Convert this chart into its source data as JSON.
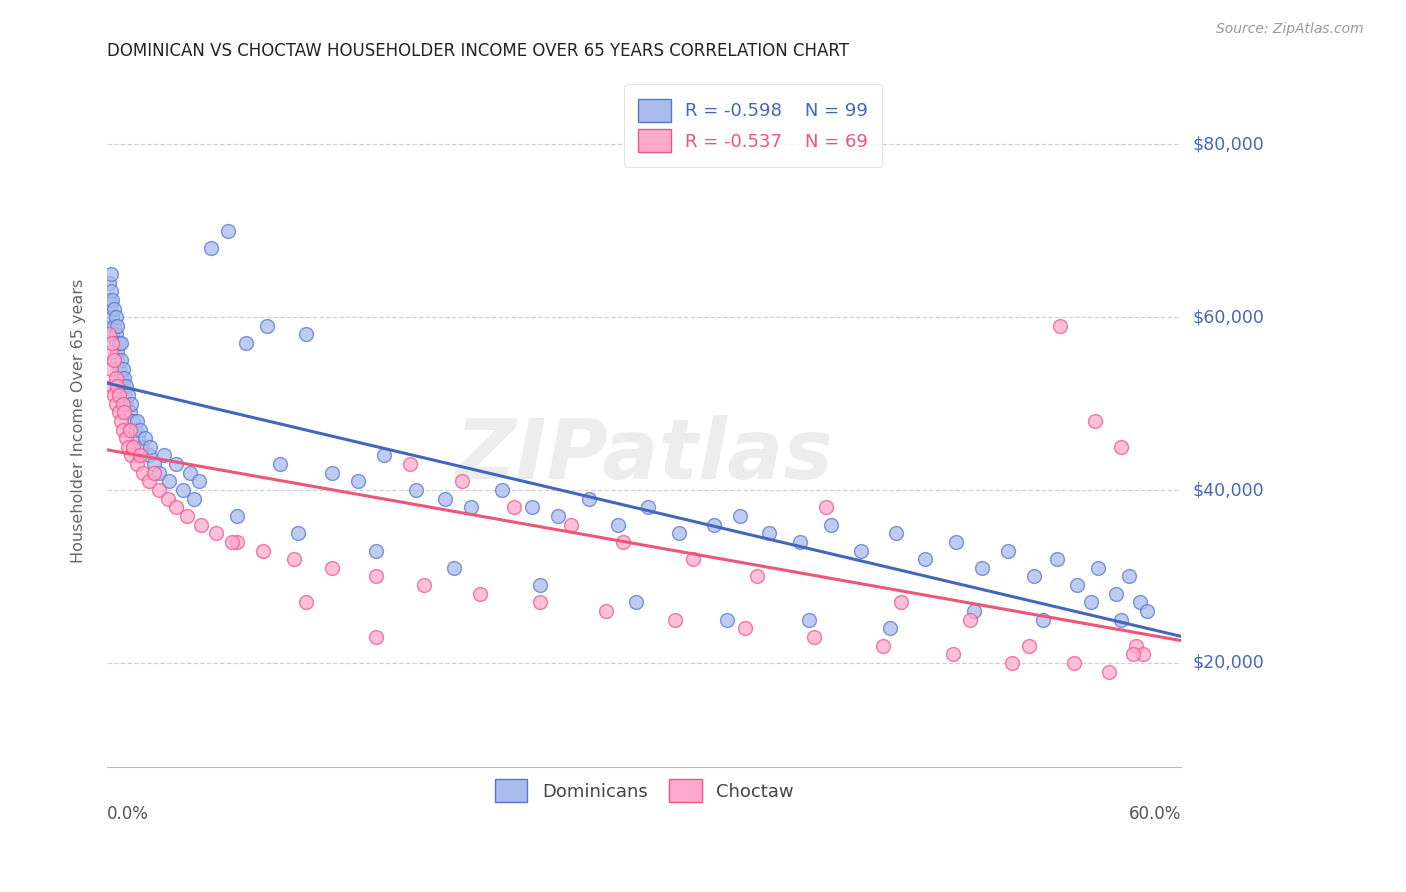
{
  "title": "DOMINICAN VS CHOCTAW HOUSEHOLDER INCOME OVER 65 YEARS CORRELATION CHART",
  "source": "Source: ZipAtlas.com",
  "ylabel": "Householder Income Over 65 years",
  "xlim": [
    0.0,
    0.62
  ],
  "ylim": [
    8000,
    88000
  ],
  "yticks": [
    20000,
    40000,
    60000,
    80000
  ],
  "ytick_labels": [
    "$20,000",
    "$40,000",
    "$60,000",
    "$80,000"
  ],
  "legend_blue_r": "-0.598",
  "legend_blue_n": "99",
  "legend_pink_r": "-0.537",
  "legend_pink_n": "69",
  "blue_fill": "#AABBEE",
  "blue_edge": "#5577CC",
  "pink_fill": "#FFAACC",
  "pink_edge": "#EE5588",
  "blue_line": "#4466BB",
  "pink_line": "#EE5577",
  "watermark": "ZIPatlas",
  "bg": "#FFFFFF",
  "blue_x": [
    0.001,
    0.001,
    0.002,
    0.002,
    0.002,
    0.003,
    0.003,
    0.003,
    0.004,
    0.004,
    0.005,
    0.005,
    0.005,
    0.006,
    0.006,
    0.006,
    0.007,
    0.007,
    0.008,
    0.008,
    0.008,
    0.009,
    0.009,
    0.01,
    0.01,
    0.011,
    0.011,
    0.012,
    0.013,
    0.014,
    0.015,
    0.016,
    0.017,
    0.018,
    0.019,
    0.02,
    0.022,
    0.024,
    0.025,
    0.027,
    0.03,
    0.033,
    0.036,
    0.04,
    0.044,
    0.048,
    0.053,
    0.06,
    0.07,
    0.08,
    0.092,
    0.1,
    0.115,
    0.13,
    0.145,
    0.16,
    0.178,
    0.195,
    0.21,
    0.228,
    0.245,
    0.26,
    0.278,
    0.295,
    0.312,
    0.33,
    0.35,
    0.365,
    0.382,
    0.4,
    0.418,
    0.435,
    0.455,
    0.472,
    0.49,
    0.505,
    0.52,
    0.535,
    0.548,
    0.56,
    0.572,
    0.582,
    0.59,
    0.596,
    0.6,
    0.05,
    0.075,
    0.11,
    0.155,
    0.2,
    0.25,
    0.305,
    0.358,
    0.405,
    0.452,
    0.5,
    0.54,
    0.568,
    0.585
  ],
  "blue_y": [
    64000,
    62000,
    63000,
    61500,
    65000,
    60000,
    62000,
    58000,
    61000,
    59000,
    58000,
    60000,
    57000,
    56000,
    59000,
    55000,
    57000,
    54000,
    55000,
    53000,
    57000,
    52000,
    54000,
    53000,
    51000,
    52000,
    50000,
    51000,
    49000,
    50000,
    48000,
    47000,
    48000,
    46000,
    47000,
    45000,
    46000,
    44000,
    45000,
    43000,
    42000,
    44000,
    41000,
    43000,
    40000,
    42000,
    41000,
    68000,
    70000,
    57000,
    59000,
    43000,
    58000,
    42000,
    41000,
    44000,
    40000,
    39000,
    38000,
    40000,
    38000,
    37000,
    39000,
    36000,
    38000,
    35000,
    36000,
    37000,
    35000,
    34000,
    36000,
    33000,
    35000,
    32000,
    34000,
    31000,
    33000,
    30000,
    32000,
    29000,
    31000,
    28000,
    30000,
    27000,
    26000,
    39000,
    37000,
    35000,
    33000,
    31000,
    29000,
    27000,
    25000,
    25000,
    24000,
    26000,
    25000,
    27000,
    25000
  ],
  "pink_x": [
    0.001,
    0.002,
    0.002,
    0.003,
    0.003,
    0.004,
    0.004,
    0.005,
    0.005,
    0.006,
    0.007,
    0.007,
    0.008,
    0.009,
    0.009,
    0.01,
    0.011,
    0.012,
    0.013,
    0.014,
    0.015,
    0.017,
    0.019,
    0.021,
    0.024,
    0.027,
    0.03,
    0.035,
    0.04,
    0.046,
    0.054,
    0.063,
    0.075,
    0.09,
    0.108,
    0.13,
    0.155,
    0.183,
    0.215,
    0.25,
    0.288,
    0.328,
    0.368,
    0.408,
    0.448,
    0.488,
    0.522,
    0.55,
    0.57,
    0.585,
    0.594,
    0.598,
    0.175,
    0.205,
    0.235,
    0.268,
    0.298,
    0.338,
    0.375,
    0.415,
    0.458,
    0.498,
    0.532,
    0.558,
    0.578,
    0.592,
    0.072,
    0.115,
    0.155
  ],
  "pink_y": [
    58000,
    56000,
    54000,
    57000,
    52000,
    55000,
    51000,
    53000,
    50000,
    52000,
    49000,
    51000,
    48000,
    50000,
    47000,
    49000,
    46000,
    45000,
    47000,
    44000,
    45000,
    43000,
    44000,
    42000,
    41000,
    42000,
    40000,
    39000,
    38000,
    37000,
    36000,
    35000,
    34000,
    33000,
    32000,
    31000,
    30000,
    29000,
    28000,
    27000,
    26000,
    25000,
    24000,
    23000,
    22000,
    21000,
    20000,
    59000,
    48000,
    45000,
    22000,
    21000,
    43000,
    41000,
    38000,
    36000,
    34000,
    32000,
    30000,
    38000,
    27000,
    25000,
    22000,
    20000,
    19000,
    21000,
    34000,
    27000,
    23000
  ]
}
